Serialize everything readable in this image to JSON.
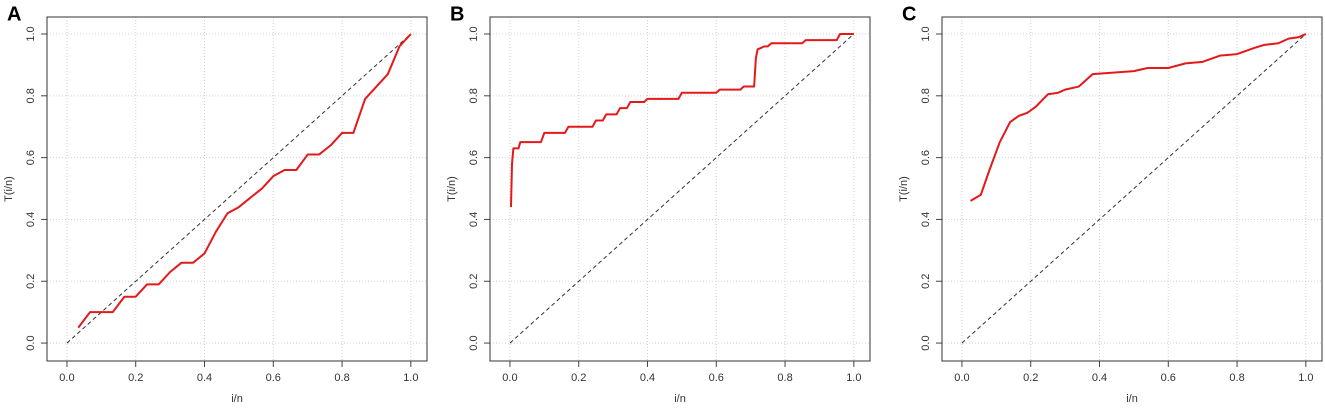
{
  "chart_data": [
    {
      "type": "line",
      "panel": "A",
      "xlabel": "i/n",
      "ylabel": "T(i/n)",
      "color": "#e3191c",
      "grid": true,
      "diagonal": true,
      "xlim": [
        -0.058,
        1.047
      ],
      "ylim": [
        -0.058,
        1.055
      ],
      "xticks": [
        {
          "value": 0,
          "label": "0.0"
        },
        {
          "value": 0.2,
          "label": "0.2"
        },
        {
          "value": 0.4,
          "label": "0.4"
        },
        {
          "value": 0.6,
          "label": "0.6"
        },
        {
          "value": 0.8,
          "label": "0.8"
        },
        {
          "value": 1,
          "label": "1.0"
        }
      ],
      "yticks": [
        {
          "value": 0,
          "label": "0.0"
        },
        {
          "value": 0.2,
          "label": "0.2"
        },
        {
          "value": 0.4,
          "label": "0.4"
        },
        {
          "value": 0.6,
          "label": "0.6"
        },
        {
          "value": 0.8,
          "label": "0.8"
        },
        {
          "value": 1,
          "label": "1.0"
        }
      ],
      "x": [
        0.033,
        0.067,
        0.133,
        0.167,
        0.2,
        0.233,
        0.267,
        0.3,
        0.333,
        0.367,
        0.4,
        0.433,
        0.467,
        0.5,
        0.533,
        0.567,
        0.6,
        0.633,
        0.667,
        0.7,
        0.733,
        0.767,
        0.8,
        0.833,
        0.867,
        0.9,
        0.933,
        0.967,
        1.0
      ],
      "values": [
        0.05,
        0.1,
        0.1,
        0.15,
        0.15,
        0.19,
        0.19,
        0.23,
        0.26,
        0.26,
        0.29,
        0.36,
        0.42,
        0.44,
        0.47,
        0.5,
        0.54,
        0.56,
        0.56,
        0.61,
        0.61,
        0.64,
        0.68,
        0.68,
        0.79,
        0.83,
        0.87,
        0.96,
        1.0
      ]
    },
    {
      "type": "line",
      "panel": "B",
      "xlabel": "i/n",
      "ylabel": "T(i/n)",
      "color": "#e3191c",
      "grid": true,
      "diagonal": true,
      "xlim": [
        -0.058,
        1.047
      ],
      "ylim": [
        -0.058,
        1.055
      ],
      "xticks": [
        {
          "value": 0,
          "label": "0.0"
        },
        {
          "value": 0.2,
          "label": "0.2"
        },
        {
          "value": 0.4,
          "label": "0.4"
        },
        {
          "value": 0.6,
          "label": "0.6"
        },
        {
          "value": 0.8,
          "label": "0.8"
        },
        {
          "value": 1,
          "label": "1.0"
        }
      ],
      "yticks": [
        {
          "value": 0,
          "label": "0.0"
        },
        {
          "value": 0.2,
          "label": "0.2"
        },
        {
          "value": 0.4,
          "label": "0.4"
        },
        {
          "value": 0.6,
          "label": "0.6"
        },
        {
          "value": 0.8,
          "label": "0.8"
        },
        {
          "value": 1,
          "label": "1.0"
        }
      ],
      "x": [
        0.003,
        0.006,
        0.01,
        0.025,
        0.03,
        0.09,
        0.1,
        0.16,
        0.17,
        0.24,
        0.25,
        0.27,
        0.28,
        0.31,
        0.32,
        0.34,
        0.35,
        0.39,
        0.4,
        0.49,
        0.5,
        0.6,
        0.61,
        0.67,
        0.68,
        0.71,
        0.715,
        0.72,
        0.74,
        0.75,
        0.76,
        0.85,
        0.86,
        0.95,
        0.96,
        1.0
      ],
      "values": [
        0.44,
        0.58,
        0.63,
        0.63,
        0.65,
        0.65,
        0.68,
        0.68,
        0.7,
        0.7,
        0.72,
        0.72,
        0.74,
        0.74,
        0.76,
        0.76,
        0.78,
        0.78,
        0.79,
        0.79,
        0.81,
        0.81,
        0.82,
        0.82,
        0.83,
        0.83,
        0.92,
        0.95,
        0.96,
        0.96,
        0.97,
        0.97,
        0.98,
        0.98,
        1.0,
        1.0
      ]
    },
    {
      "type": "line",
      "panel": "C",
      "xlabel": "i/n",
      "ylabel": "T(i/n)",
      "color": "#e3191c",
      "grid": true,
      "diagonal": true,
      "xlim": [
        -0.058,
        1.047
      ],
      "ylim": [
        -0.058,
        1.055
      ],
      "xticks": [
        {
          "value": 0,
          "label": "0.0"
        },
        {
          "value": 0.2,
          "label": "0.2"
        },
        {
          "value": 0.4,
          "label": "0.4"
        },
        {
          "value": 0.6,
          "label": "0.6"
        },
        {
          "value": 0.8,
          "label": "0.8"
        },
        {
          "value": 1,
          "label": "1.0"
        }
      ],
      "yticks": [
        {
          "value": 0,
          "label": "0.0"
        },
        {
          "value": 0.2,
          "label": "0.2"
        },
        {
          "value": 0.4,
          "label": "0.4"
        },
        {
          "value": 0.6,
          "label": "0.6"
        },
        {
          "value": 0.8,
          "label": "0.8"
        },
        {
          "value": 1,
          "label": "1.0"
        }
      ],
      "x": [
        0.025,
        0.055,
        0.08,
        0.11,
        0.14,
        0.165,
        0.19,
        0.215,
        0.25,
        0.28,
        0.3,
        0.34,
        0.38,
        0.44,
        0.5,
        0.54,
        0.6,
        0.65,
        0.7,
        0.75,
        0.8,
        0.85,
        0.88,
        0.92,
        0.95,
        0.98,
        1.0
      ],
      "values": [
        0.46,
        0.48,
        0.56,
        0.65,
        0.715,
        0.735,
        0.745,
        0.765,
        0.805,
        0.81,
        0.82,
        0.83,
        0.87,
        0.875,
        0.88,
        0.89,
        0.89,
        0.905,
        0.91,
        0.93,
        0.935,
        0.955,
        0.965,
        0.97,
        0.985,
        0.99,
        1.0
      ]
    }
  ]
}
